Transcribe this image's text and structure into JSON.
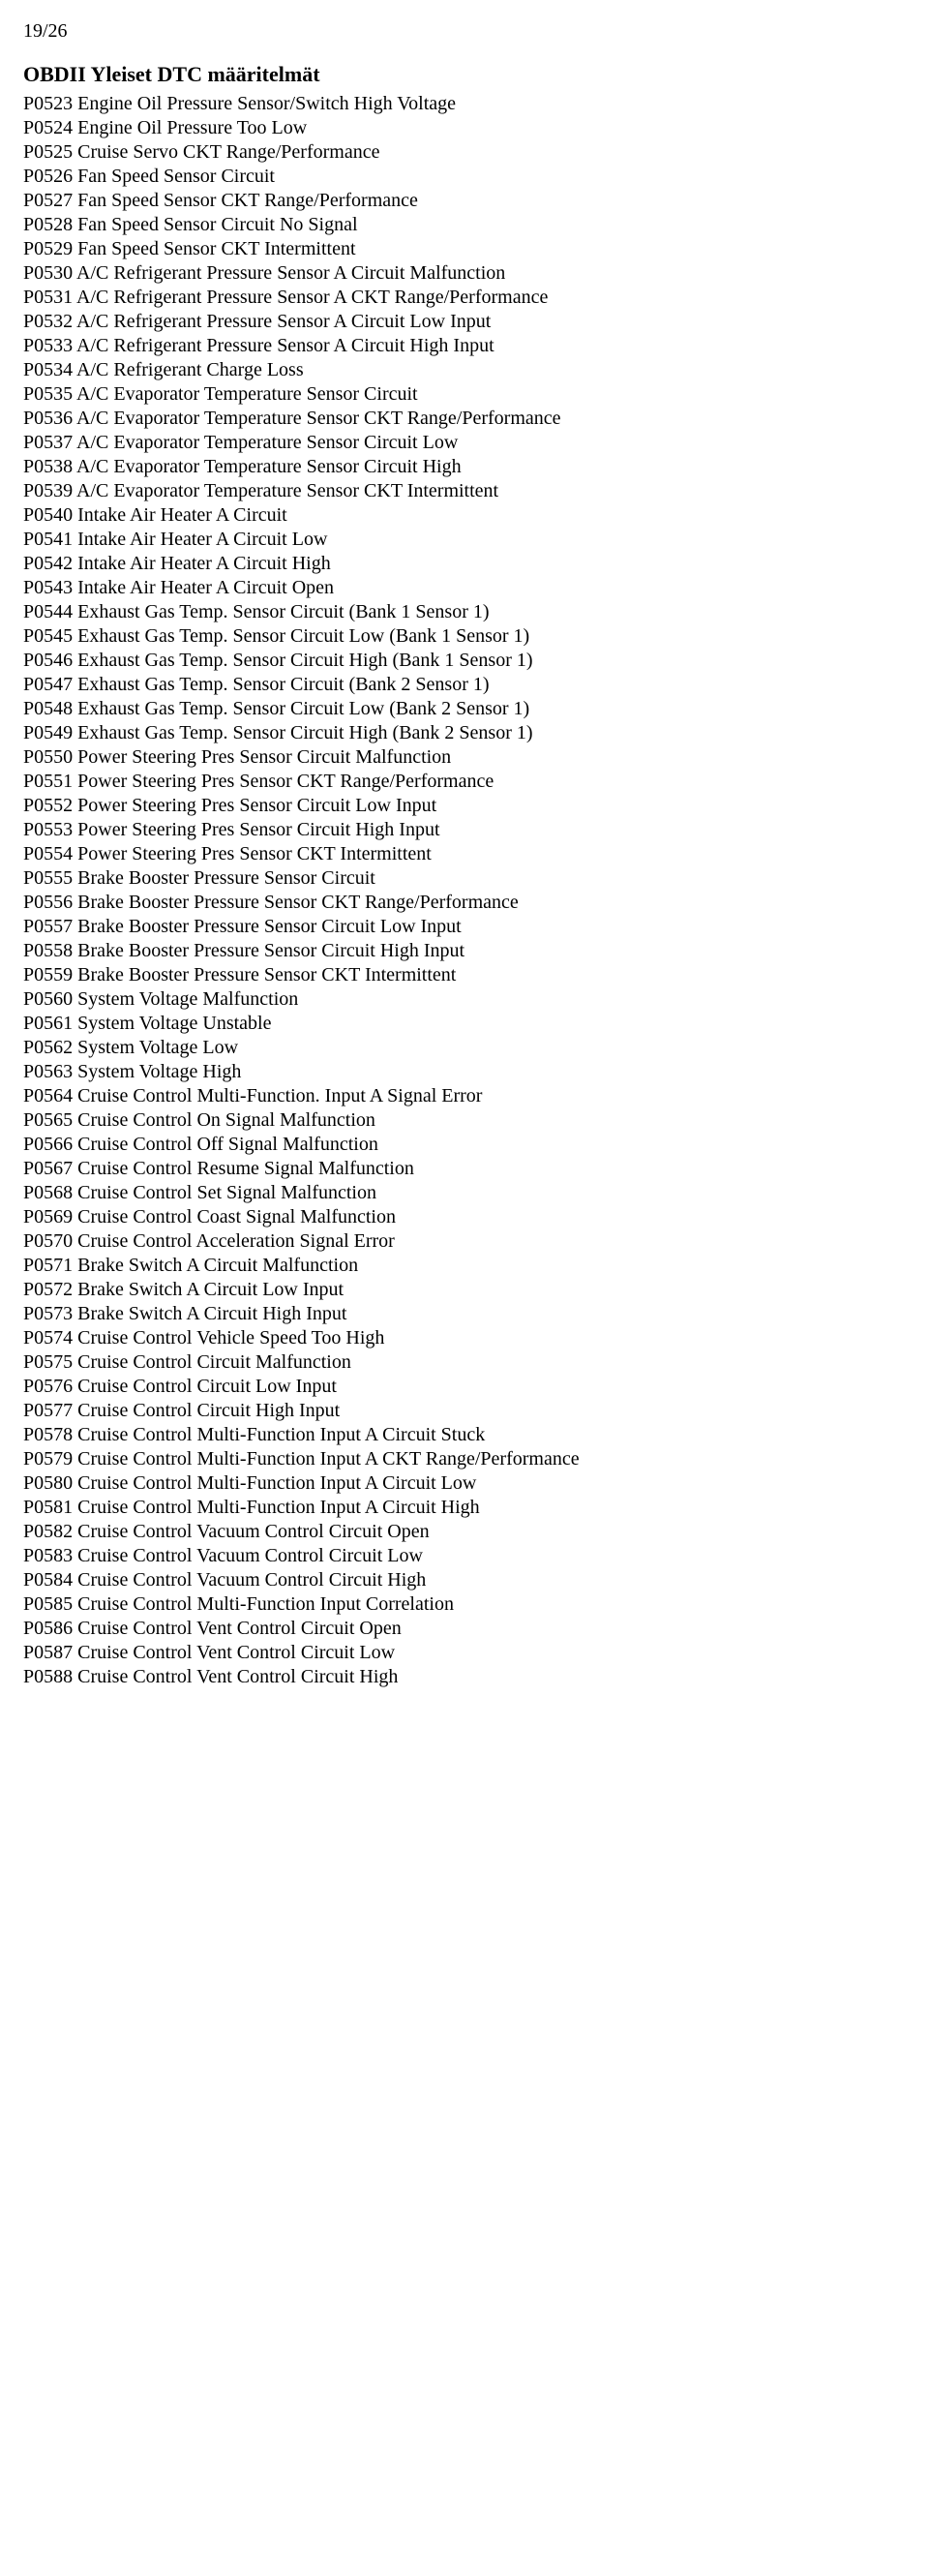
{
  "page_number": "19/26",
  "title": "OBDII Yleiset DTC määritelmät",
  "lines": [
    "P0523 Engine Oil Pressure Sensor/Switch High Voltage",
    "P0524 Engine Oil Pressure Too Low",
    "P0525 Cruise Servo CKT Range/Performance",
    "P0526 Fan Speed Sensor Circuit",
    "P0527 Fan Speed Sensor CKT Range/Performance",
    "P0528 Fan Speed Sensor Circuit No Signal",
    "P0529 Fan Speed Sensor CKT Intermittent",
    "P0530 A/C Refrigerant Pressure Sensor A Circuit Malfunction",
    "P0531 A/C Refrigerant Pressure Sensor A CKT Range/Performance",
    "P0532 A/C Refrigerant Pressure Sensor A Circuit Low Input",
    "P0533 A/C Refrigerant Pressure Sensor A Circuit High Input",
    "P0534 A/C Refrigerant Charge Loss",
    "P0535 A/C Evaporator Temperature Sensor Circuit",
    "P0536 A/C Evaporator Temperature Sensor CKT Range/Performance",
    "P0537 A/C Evaporator Temperature Sensor Circuit Low",
    "P0538 A/C Evaporator Temperature Sensor Circuit High",
    "P0539 A/C Evaporator Temperature Sensor CKT Intermittent",
    "P0540 Intake Air Heater A Circuit",
    "P0541 Intake Air Heater A Circuit Low",
    "P0542 Intake Air Heater A Circuit High",
    "P0543 Intake Air Heater A Circuit Open",
    "P0544 Exhaust Gas Temp. Sensor Circuit (Bank 1 Sensor 1)",
    "P0545 Exhaust Gas Temp. Sensor Circuit Low (Bank 1 Sensor 1)",
    "P0546 Exhaust Gas Temp. Sensor Circuit High (Bank 1 Sensor 1)",
    "P0547 Exhaust Gas Temp. Sensor Circuit (Bank 2 Sensor 1)",
    "P0548 Exhaust Gas Temp. Sensor Circuit Low (Bank 2 Sensor 1)",
    "P0549 Exhaust Gas Temp. Sensor Circuit High (Bank 2 Sensor 1)",
    "P0550 Power Steering Pres Sensor Circuit Malfunction",
    "P0551 Power Steering Pres Sensor CKT Range/Performance",
    "P0552 Power Steering Pres Sensor Circuit Low Input",
    "P0553 Power Steering Pres Sensor Circuit High Input",
    "P0554 Power Steering Pres Sensor CKT Intermittent",
    "P0555 Brake Booster Pressure Sensor Circuit",
    "P0556 Brake Booster Pressure Sensor CKT Range/Performance",
    "P0557 Brake Booster Pressure Sensor Circuit Low Input",
    "P0558 Brake Booster Pressure Sensor Circuit High Input",
    "P0559 Brake Booster Pressure Sensor CKT Intermittent",
    "P0560 System Voltage Malfunction",
    "P0561 System Voltage Unstable",
    "P0562 System Voltage Low",
    "P0563 System Voltage High",
    "P0564 Cruise Control Multi-Function. Input A Signal Error",
    "P0565 Cruise Control On Signal Malfunction",
    "P0566 Cruise Control Off Signal Malfunction",
    "P0567 Cruise Control Resume Signal Malfunction",
    "P0568 Cruise Control Set Signal Malfunction",
    "P0569 Cruise Control Coast Signal Malfunction",
    "P0570 Cruise Control Acceleration Signal Error",
    "P0571 Brake Switch A Circuit Malfunction",
    "P0572 Brake Switch A Circuit Low Input",
    "P0573 Brake Switch A Circuit High Input",
    "P0574 Cruise Control Vehicle Speed Too High",
    "P0575 Cruise Control Circuit Malfunction",
    "P0576 Cruise Control Circuit Low Input",
    "P0577 Cruise Control Circuit High Input",
    "P0578 Cruise Control Multi-Function Input A Circuit Stuck",
    "P0579 Cruise Control Multi-Function Input A CKT Range/Performance",
    "P0580 Cruise Control Multi-Function Input A Circuit Low",
    "P0581 Cruise Control Multi-Function Input A Circuit High",
    "P0582 Cruise Control Vacuum Control Circuit Open",
    "P0583 Cruise Control Vacuum Control Circuit Low",
    "P0584 Cruise Control Vacuum Control Circuit High",
    "P0585 Cruise Control Multi-Function Input Correlation",
    "P0586 Cruise Control Vent Control Circuit Open",
    "P0587 Cruise Control Vent Control Circuit Low",
    "P0588 Cruise Control Vent Control Circuit High"
  ]
}
